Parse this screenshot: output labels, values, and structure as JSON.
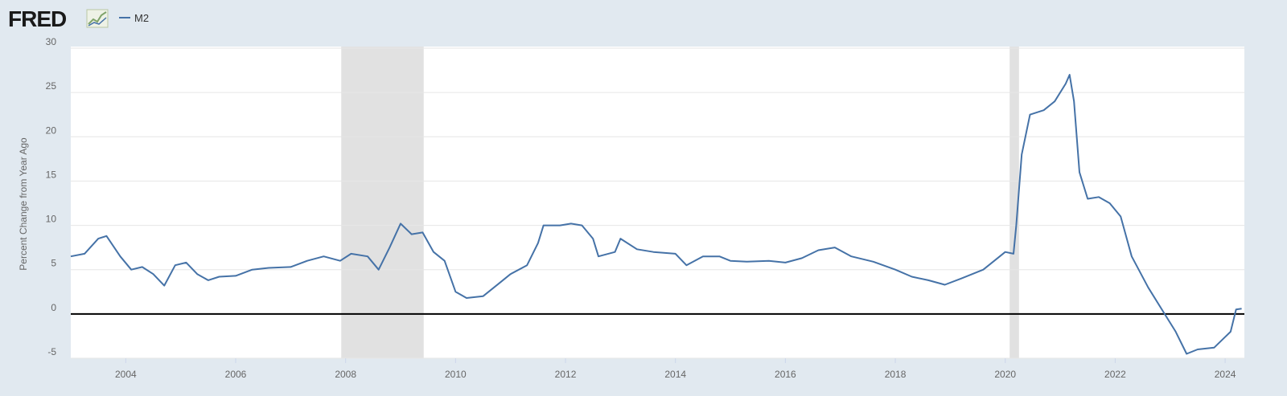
{
  "chart_data": {
    "type": "line",
    "brand": "FRED",
    "y_label": "Percent Change from Year Ago",
    "x": [
      2003.0,
      2003.25,
      2003.5,
      2003.65,
      2003.9,
      2004.1,
      2004.3,
      2004.5,
      2004.7,
      2004.9,
      2005.1,
      2005.3,
      2005.5,
      2005.7,
      2006.0,
      2006.3,
      2006.6,
      2007.0,
      2007.3,
      2007.6,
      2007.9,
      2008.1,
      2008.4,
      2008.6,
      2008.8,
      2009.0,
      2009.2,
      2009.4,
      2009.6,
      2009.8,
      2010.0,
      2010.2,
      2010.5,
      2010.8,
      2011.0,
      2011.3,
      2011.5,
      2011.6,
      2011.9,
      2012.1,
      2012.3,
      2012.5,
      2012.6,
      2012.9,
      2013.0,
      2013.3,
      2013.6,
      2014.0,
      2014.2,
      2014.5,
      2014.8,
      2015.0,
      2015.3,
      2015.7,
      2016.0,
      2016.3,
      2016.6,
      2016.9,
      2017.2,
      2017.6,
      2018.0,
      2018.3,
      2018.6,
      2018.9,
      2019.2,
      2019.6,
      2019.9,
      2020.0,
      2020.15,
      2020.2,
      2020.3,
      2020.45,
      2020.7,
      2020.9,
      2021.1,
      2021.17,
      2021.25,
      2021.35,
      2021.5,
      2021.7,
      2021.9,
      2022.1,
      2022.3,
      2022.6,
      2022.9,
      2023.1,
      2023.3,
      2023.5,
      2023.8,
      2024.1,
      2024.2,
      2024.3
    ],
    "series": [
      {
        "name": "M2",
        "color": "#4572a7",
        "values": [
          6.5,
          6.8,
          8.5,
          8.8,
          6.5,
          5.0,
          5.3,
          4.5,
          3.2,
          5.5,
          5.8,
          4.5,
          3.8,
          4.2,
          4.3,
          5.0,
          5.2,
          5.3,
          6.0,
          6.5,
          6.0,
          6.8,
          6.5,
          5.0,
          7.5,
          10.2,
          9.0,
          9.2,
          7.0,
          6.0,
          2.5,
          1.8,
          2.0,
          3.5,
          4.5,
          5.5,
          8.0,
          10.0,
          10.0,
          10.2,
          10.0,
          8.5,
          6.5,
          7.0,
          8.5,
          7.3,
          7.0,
          6.8,
          5.5,
          6.5,
          6.5,
          6.0,
          5.9,
          6.0,
          5.8,
          6.3,
          7.2,
          7.5,
          6.5,
          5.9,
          5.0,
          4.2,
          3.8,
          3.3,
          4.0,
          5.0,
          6.5,
          7.0,
          6.8,
          10.0,
          18.0,
          22.5,
          23.0,
          24.0,
          26.0,
          27.0,
          24.0,
          16.0,
          13.0,
          13.2,
          12.5,
          11.0,
          6.5,
          3.0,
          0.0,
          -2.0,
          -4.5,
          -4.0,
          -3.8,
          -2.0,
          0.5,
          0.6
        ]
      }
    ],
    "recessions": [
      [
        2007.92,
        2009.42
      ],
      [
        2020.08,
        2020.25
      ]
    ],
    "xlim": [
      2003.0,
      2024.35
    ],
    "xticks": [
      2004,
      2006,
      2008,
      2010,
      2012,
      2014,
      2016,
      2018,
      2020,
      2022,
      2024
    ],
    "ylim": [
      -5,
      30
    ],
    "yticks": [
      -5,
      0,
      5,
      10,
      15,
      20,
      25,
      30
    ],
    "grid": true
  }
}
